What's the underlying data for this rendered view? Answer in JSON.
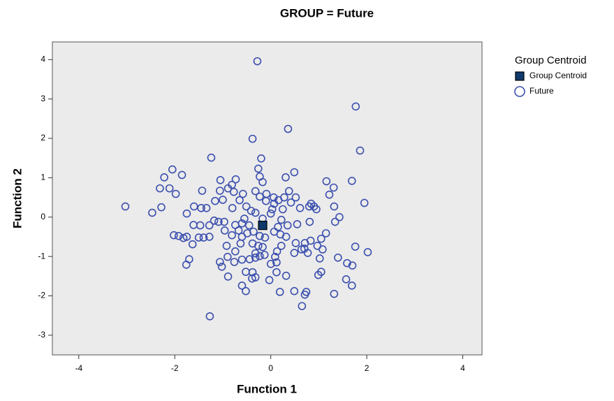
{
  "chart_data": {
    "type": "scatter",
    "title": "GROUP = Future",
    "x_label": "Function 1",
    "y_label": "Function 2",
    "xlim": [
      -4.55,
      4.4
    ],
    "ylim": [
      -3.5,
      4.45
    ],
    "xticks": [
      -4,
      -2,
      0,
      2,
      4
    ],
    "yticks": [
      -3,
      -2,
      -1,
      0,
      1,
      2,
      3,
      4
    ],
    "grid": false,
    "legend_position": "right",
    "legend_title": "Group Centroid",
    "series": [
      {
        "name": "Group Centroid",
        "marker": "square",
        "color": "#0f3a6b",
        "x": [
          -0.17
        ],
        "y": [
          -0.21
        ]
      },
      {
        "name": "Future",
        "marker": "circle",
        "color": "#3b4fae",
        "x": [
          -0.28,
          0.36,
          1.77,
          1.86,
          -0.38,
          -1.24,
          -0.2,
          -3.03,
          -2.47,
          -2.28,
          -2.31,
          -2.22,
          -2.11,
          -2.05,
          -1.98,
          -1.85,
          -1.43,
          -1.75,
          -1.6,
          -1.45,
          -1.34,
          -1.16,
          -1.06,
          -1.05,
          -1.0,
          -0.89,
          -0.81,
          -0.73,
          -0.8,
          -0.65,
          -0.77,
          -0.58,
          -0.32,
          -0.26,
          -0.23,
          -0.17,
          -0.23,
          -0.09,
          0.06,
          0.28,
          0.31,
          0.49,
          0.52,
          0.38,
          0.42,
          0.61,
          1.16,
          1.31,
          1.22,
          1.69,
          1.95,
          0.84,
          0.9,
          0.95,
          0.8,
          1.32,
          1.43,
          1.34,
          1.15,
          0.81,
          0.55,
          0.35,
          0.22,
          0.15,
          0.03,
          0.07,
          0.0,
          -0.17,
          -0.32,
          -0.41,
          -0.55,
          -0.6,
          -0.45,
          -0.49,
          -0.6,
          -0.67,
          -0.74,
          -0.97,
          -1.18,
          -1.09,
          -1.28,
          -1.47,
          -1.61,
          -2.02,
          -1.92,
          -1.82,
          -1.75,
          -1.63,
          -1.5,
          -1.4,
          -1.28,
          -0.96,
          -0.81,
          -0.92,
          -0.74,
          -0.63,
          -0.38,
          -0.26,
          -0.17,
          -0.23,
          -0.12,
          -0.36,
          0.07,
          0.2,
          0.32,
          0.52,
          0.71,
          0.7,
          0.83,
          0.97,
          1.05,
          1.08,
          0.77,
          0.64,
          0.49,
          0.22,
          0.13,
          0.09,
          0.12,
          0.12,
          -0.32,
          -0.32,
          -0.23,
          -0.13,
          -0.44,
          -0.52,
          -0.38,
          -0.32,
          -0.39,
          -0.6,
          -0.76,
          -0.9,
          -1.06,
          -1.02,
          -0.89,
          -1.7,
          -1.76,
          -0.6,
          -0.52,
          -0.03,
          0.19,
          0.49,
          0.74,
          0.71,
          0.65,
          0.32,
          0.99,
          1.05,
          1.02,
          1.32,
          1.4,
          1.59,
          1.7,
          1.76,
          2.02,
          1.57,
          1.69,
          -1.27,
          0.0,
          -0.1,
          0.16,
          0.25,
          -0.51
        ],
        "y": [
          3.96,
          2.24,
          2.81,
          1.69,
          1.99,
          1.51,
          1.49,
          0.27,
          0.11,
          0.25,
          0.73,
          1.01,
          0.73,
          1.21,
          0.59,
          1.07,
          0.67,
          0.09,
          0.27,
          0.23,
          0.23,
          0.41,
          0.67,
          0.94,
          0.44,
          0.73,
          0.82,
          0.96,
          0.23,
          0.43,
          0.64,
          0.59,
          0.66,
          1.23,
          1.03,
          0.89,
          0.52,
          0.59,
          0.5,
          0.5,
          1.01,
          1.14,
          0.5,
          0.66,
          0.37,
          0.23,
          0.91,
          0.75,
          0.57,
          0.92,
          0.36,
          0.34,
          0.27,
          0.2,
          0.27,
          0.27,
          0.0,
          -0.12,
          -0.41,
          -0.12,
          -0.18,
          -0.21,
          -0.07,
          -0.25,
          0.2,
          0.34,
          0.09,
          -0.04,
          0.11,
          0.16,
          -0.04,
          -0.16,
          -0.21,
          -0.41,
          -0.5,
          -0.34,
          -0.2,
          -0.12,
          -0.09,
          -0.12,
          -0.21,
          -0.21,
          -0.2,
          -0.46,
          -0.48,
          -0.53,
          -0.5,
          -0.69,
          -0.52,
          -0.52,
          -0.5,
          -0.34,
          -0.46,
          -0.73,
          -0.87,
          -0.67,
          -0.67,
          -0.73,
          -0.76,
          -0.48,
          -0.52,
          -0.37,
          -0.37,
          -0.44,
          -0.5,
          -0.66,
          -0.66,
          -0.8,
          -0.6,
          -0.73,
          -0.55,
          -0.82,
          -0.91,
          -0.82,
          -0.91,
          -0.73,
          -0.87,
          -1.01,
          -1.15,
          -1.4,
          -0.92,
          -1.03,
          -0.99,
          -0.96,
          -1.07,
          -1.39,
          -1.4,
          -1.53,
          -1.56,
          -1.08,
          -1.14,
          -1.01,
          -1.14,
          -1.26,
          -1.51,
          -1.07,
          -1.21,
          -1.74,
          -1.88,
          -1.6,
          -1.9,
          -1.88,
          -1.9,
          -1.97,
          -2.26,
          -1.49,
          -1.47,
          -1.39,
          -1.05,
          -1.95,
          -1.03,
          -1.17,
          -1.23,
          -0.75,
          -0.89,
          -1.58,
          -1.74,
          -2.52,
          -1.19,
          0.41,
          0.43,
          0.2,
          0.27
        ]
      }
    ]
  }
}
